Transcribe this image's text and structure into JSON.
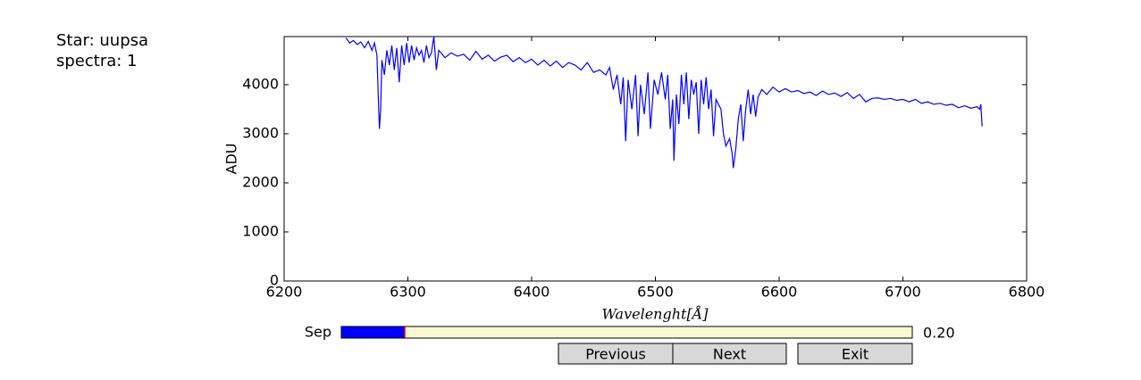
{
  "header": {
    "star": "Star: uupsa",
    "spectra": "spectra: 1"
  },
  "chart_data": {
    "type": "line",
    "xlabel": "Wavelenght[Å]",
    "ylabel": "ADU",
    "xlim": [
      6200,
      6800
    ],
    "ylim": [
      0,
      4980
    ],
    "xticks": [
      6200,
      6300,
      6400,
      6500,
      6600,
      6700,
      6800
    ],
    "yticks": [
      0,
      1000,
      2000,
      3000,
      4000
    ],
    "grid": false,
    "x": [
      6250,
      6253,
      6256,
      6259,
      6262,
      6265,
      6268,
      6271,
      6273,
      6275,
      6276,
      6277,
      6278,
      6279,
      6281,
      6283,
      6285,
      6287,
      6289,
      6291,
      6293,
      6295,
      6297,
      6299,
      6301,
      6303,
      6305,
      6307,
      6309,
      6311,
      6313,
      6315,
      6317,
      6319,
      6321,
      6323,
      6325,
      6330,
      6335,
      6340,
      6345,
      6350,
      6355,
      6360,
      6365,
      6370,
      6375,
      6380,
      6385,
      6390,
      6395,
      6400,
      6405,
      6410,
      6415,
      6420,
      6425,
      6430,
      6435,
      6440,
      6445,
      6450,
      6455,
      6460,
      6463,
      6466,
      6469,
      6472,
      6474,
      6476,
      6478,
      6481,
      6484,
      6486,
      6488,
      6491,
      6494,
      6496,
      6499,
      6502,
      6505,
      6508,
      6510,
      6512,
      6514,
      6515,
      6517,
      6519,
      6521,
      6523,
      6525,
      6527,
      6529,
      6531,
      6533,
      6535,
      6537,
      6539,
      6541,
      6543,
      6545,
      6547,
      6549,
      6551,
      6553,
      6555,
      6557,
      6560,
      6562,
      6563,
      6565,
      6567,
      6569,
      6571,
      6573,
      6575,
      6577,
      6579,
      6581,
      6583,
      6586,
      6590,
      6595,
      6600,
      6605,
      6610,
      6615,
      6620,
      6625,
      6630,
      6635,
      6640,
      6645,
      6650,
      6655,
      6660,
      6665,
      6670,
      6675,
      6680,
      6685,
      6690,
      6695,
      6700,
      6705,
      6710,
      6715,
      6720,
      6725,
      6730,
      6735,
      6740,
      6745,
      6750,
      6755,
      6760,
      6762,
      6763,
      6764
    ],
    "series": [
      {
        "color": "#0000ff",
        "values": [
          4950,
          4850,
          4900,
          4820,
          4870,
          4750,
          4880,
          4700,
          4850,
          4600,
          3800,
          3100,
          3500,
          4500,
          4200,
          4700,
          4400,
          4800,
          4300,
          4750,
          4050,
          4800,
          4400,
          4850,
          4450,
          4800,
          4500,
          4750,
          4600,
          4700,
          4450,
          4800,
          4550,
          4650,
          4980,
          4300,
          4700,
          4550,
          4650,
          4580,
          4620,
          4500,
          4680,
          4520,
          4600,
          4480,
          4560,
          4600,
          4470,
          4550,
          4450,
          4520,
          4400,
          4500,
          4380,
          4480,
          4350,
          4450,
          4400,
          4300,
          4450,
          4250,
          4300,
          4200,
          4350,
          3900,
          4200,
          3600,
          4150,
          2850,
          4100,
          3500,
          4200,
          2950,
          4000,
          3400,
          4250,
          3100,
          4100,
          3800,
          4250,
          3700,
          4200,
          3100,
          3700,
          2450,
          3800,
          3200,
          4200,
          3600,
          4250,
          3300,
          4100,
          3800,
          4050,
          3000,
          4100,
          3600,
          4150,
          3500,
          3900,
          2950,
          3700,
          3600,
          3500,
          3000,
          2750,
          2900,
          2600,
          2300,
          2700,
          3300,
          3600,
          2850,
          3500,
          3900,
          3400,
          3800,
          3350,
          3750,
          3900,
          3800,
          3950,
          3850,
          3920,
          3850,
          3880,
          3820,
          3850,
          3780,
          3870,
          3800,
          3830,
          3760,
          3840,
          3720,
          3800,
          3650,
          3720,
          3730,
          3700,
          3720,
          3680,
          3700,
          3650,
          3700,
          3620,
          3650,
          3600,
          3620,
          3580,
          3600,
          3530,
          3570,
          3520,
          3550,
          3500,
          3600,
          3150
        ]
      }
    ]
  },
  "slider": {
    "label": "Sep",
    "value": 0.2,
    "value_label": "0.20",
    "min": 0,
    "max": 1.8
  },
  "buttons": [
    "Previous",
    "Next",
    "Exit"
  ]
}
